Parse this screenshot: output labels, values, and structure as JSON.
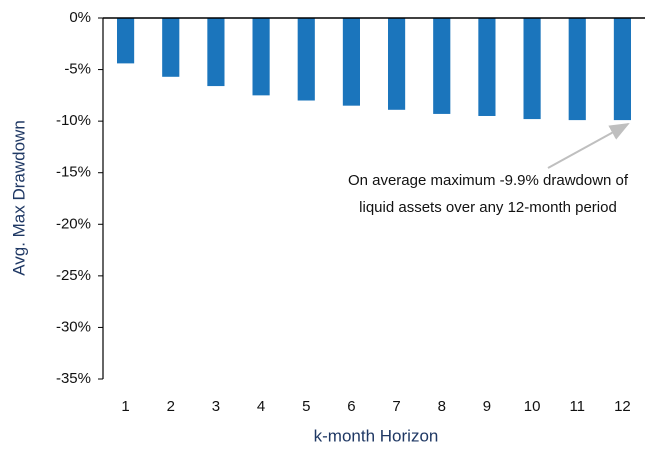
{
  "chart_data": {
    "type": "bar",
    "categories": [
      "1",
      "2",
      "3",
      "4",
      "5",
      "6",
      "7",
      "8",
      "9",
      "10",
      "11",
      "12"
    ],
    "values": [
      -4.4,
      -5.7,
      -6.6,
      -7.5,
      -8.0,
      -8.5,
      -8.9,
      -9.3,
      -9.5,
      -9.8,
      -9.9,
      -9.9
    ],
    "color": "#1b75bc",
    "ylim": [
      -35,
      0
    ],
    "yticks": [
      {
        "value": 0,
        "label": "0%"
      },
      {
        "value": -5,
        "label": "-5%"
      },
      {
        "value": -10,
        "label": "-10%"
      },
      {
        "value": -15,
        "label": "-15%"
      },
      {
        "value": -20,
        "label": "-20%"
      },
      {
        "value": -25,
        "label": "-25%"
      },
      {
        "value": -30,
        "label": "-30%"
      },
      {
        "value": -35,
        "label": "-35%"
      }
    ],
    "y_label": "Avg. Max Drawdown",
    "x_label": "k-month Horizon",
    "annotation": [
      "On average maximum -9.9% drawdown of",
      "liquid assets over any 12-month period"
    ],
    "grid": false
  }
}
